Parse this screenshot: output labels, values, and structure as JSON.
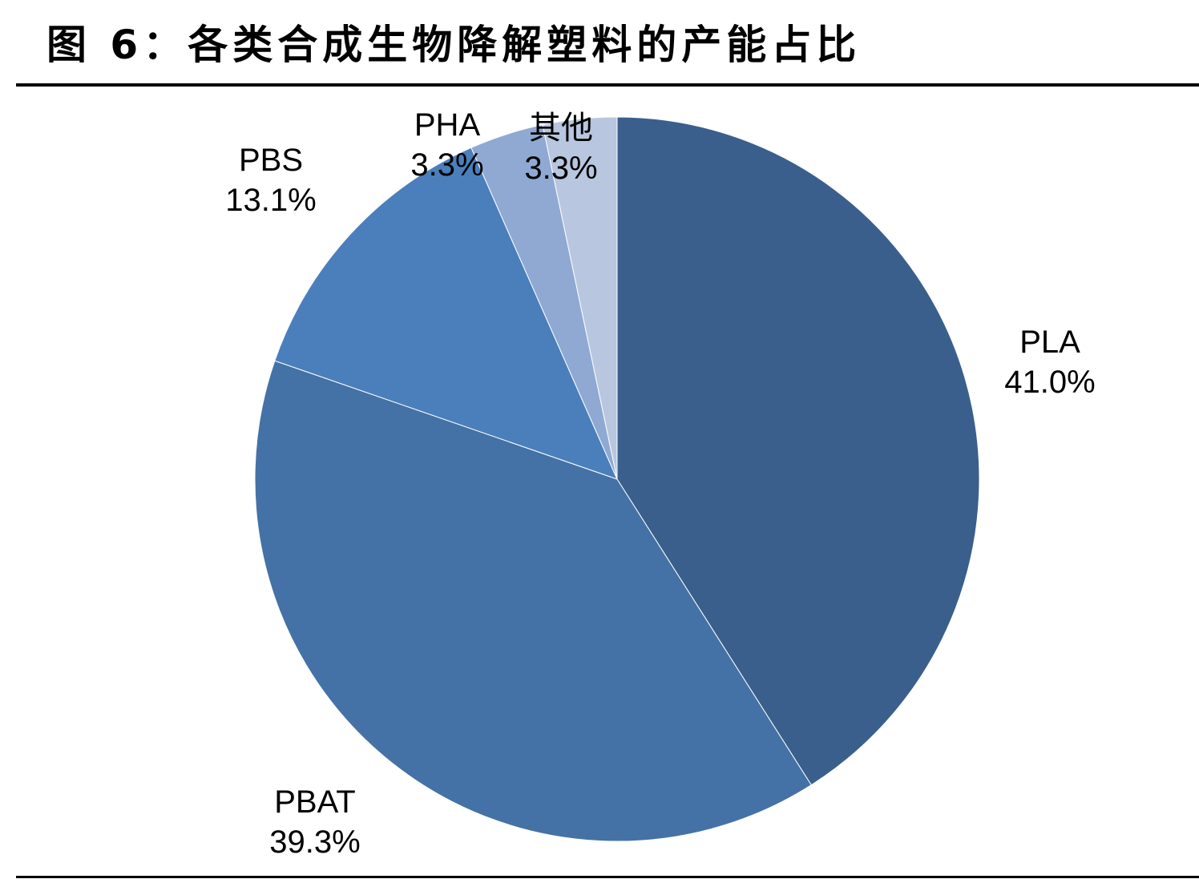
{
  "figure": {
    "title": "图 6：各类合成生物降解塑料的产能占比"
  },
  "chart_data": {
    "type": "pie",
    "title": "图 6：各类合成生物降解塑料的产能占比",
    "start_angle_deg": 0,
    "direction": "clockwise",
    "slices": [
      {
        "name": "PLA",
        "value": 41.0,
        "label": "41.0%",
        "color": "#3a5f8c"
      },
      {
        "name": "PBAT",
        "value": 39.3,
        "label": "39.3%",
        "color": "#4472a6"
      },
      {
        "name": "PBS",
        "value": 13.1,
        "label": "13.1%",
        "color": "#4b7fbb"
      },
      {
        "name": "PHA",
        "value": 3.3,
        "label": "3.3%",
        "color": "#8fa9d2"
      },
      {
        "name": "其他",
        "value": 3.3,
        "label": "3.3%",
        "color": "#b8c6df"
      }
    ],
    "legend": "none",
    "data_labels": "outside"
  }
}
